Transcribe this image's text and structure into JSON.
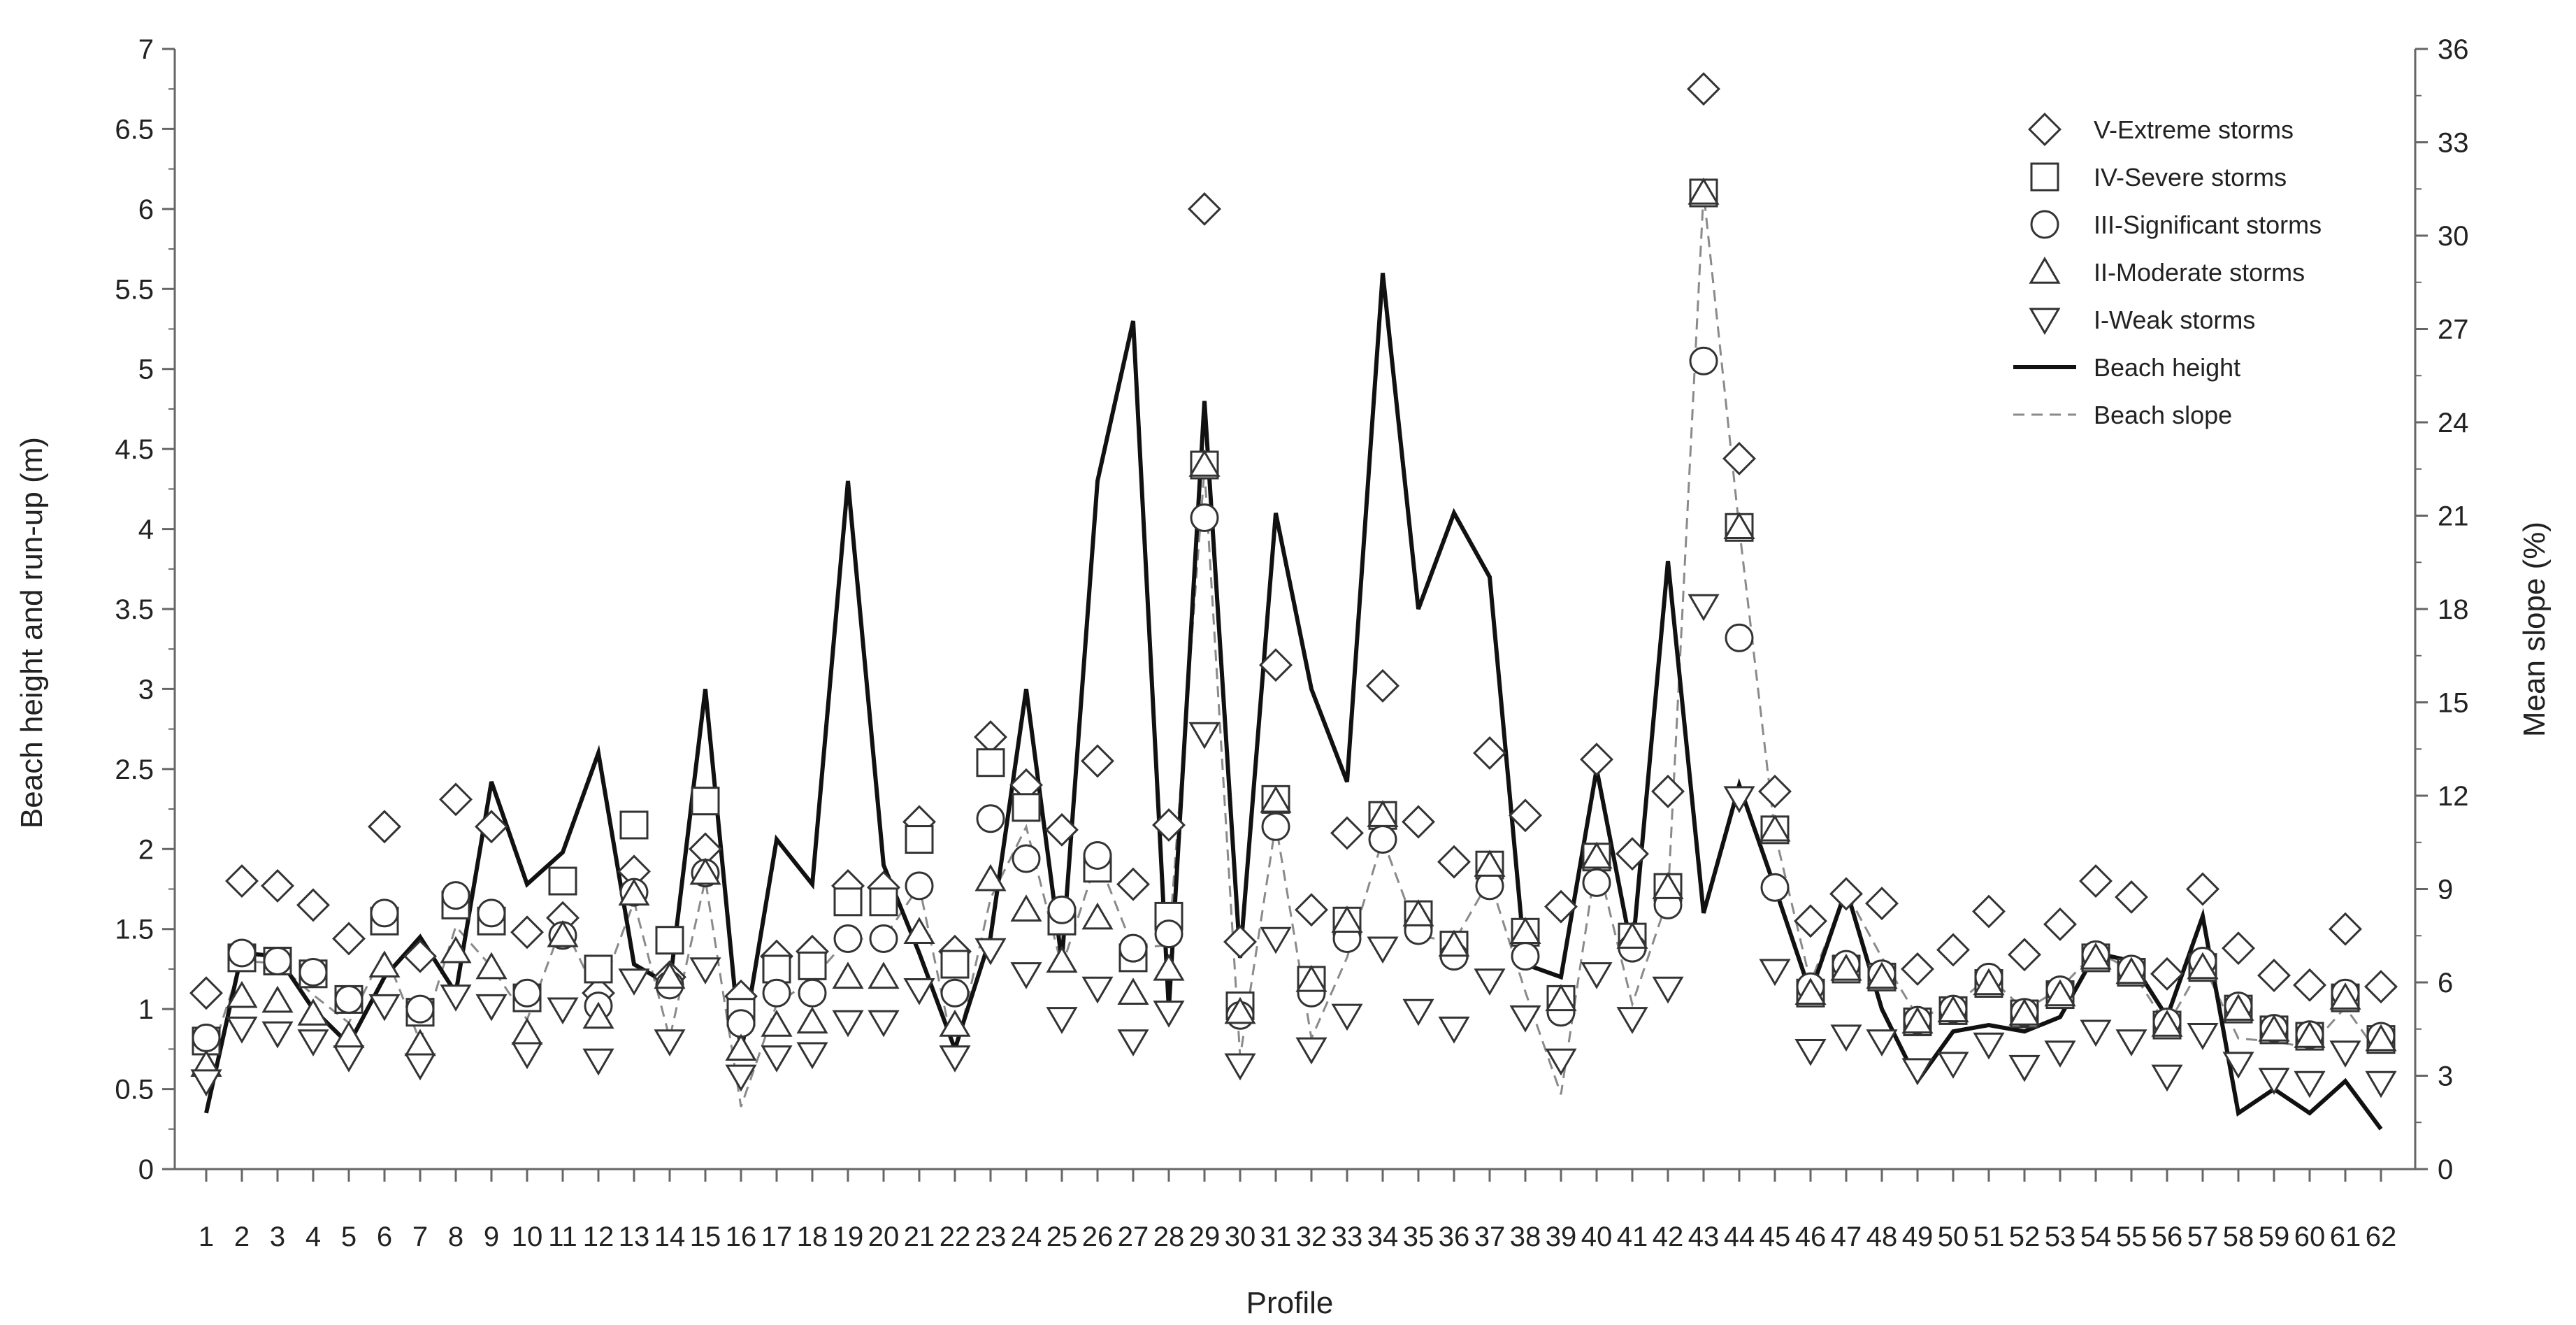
{
  "chart_data": {
    "type": "line",
    "xlabel": "Profile",
    "ylabel_left": "Beach height and run-up (m)",
    "ylabel_right": "Mean slope (%)",
    "ylim_left": [
      0,
      7
    ],
    "ylim_right": [
      0,
      36
    ],
    "yticks_left": [
      "0",
      "0.5",
      "1",
      "1.5",
      "2",
      "2.5",
      "3",
      "3.5",
      "4",
      "4.5",
      "5",
      "5.5",
      "6",
      "6.5",
      "7"
    ],
    "yticks_right": [
      "0",
      "3",
      "6",
      "9",
      "12",
      "15",
      "18",
      "21",
      "24",
      "27",
      "30",
      "33",
      "36"
    ],
    "x": [
      1,
      2,
      3,
      4,
      5,
      6,
      7,
      8,
      9,
      10,
      11,
      12,
      13,
      14,
      15,
      16,
      17,
      18,
      19,
      20,
      21,
      22,
      23,
      24,
      25,
      26,
      27,
      28,
      29,
      30,
      31,
      32,
      33,
      34,
      35,
      36,
      37,
      38,
      39,
      40,
      41,
      42,
      43,
      44,
      45,
      46,
      47,
      48,
      49,
      50,
      51,
      52,
      53,
      54,
      55,
      56,
      57,
      58,
      59,
      60,
      61,
      62
    ],
    "grid": false,
    "legend_position": "top-right",
    "series": [
      {
        "name": "V-Extreme storms",
        "marker": "diamond",
        "axis": "left",
        "values": [
          1.1,
          1.8,
          1.77,
          1.65,
          1.44,
          2.14,
          1.33,
          2.31,
          2.14,
          1.48,
          1.57,
          1.1,
          1.86,
          1.2,
          2.0,
          1.08,
          1.33,
          1.36,
          1.77,
          1.76,
          2.17,
          1.36,
          2.7,
          2.4,
          2.12,
          2.55,
          1.78,
          2.15,
          6.0,
          1.42,
          3.15,
          1.62,
          2.1,
          3.02,
          2.17,
          1.92,
          2.6,
          2.21,
          1.64,
          2.56,
          1.97,
          2.36,
          6.75,
          4.44,
          2.36,
          1.55,
          1.72,
          1.66,
          1.25,
          1.37,
          1.61,
          1.34,
          1.53,
          1.8,
          1.7,
          1.22,
          1.75,
          1.38,
          1.21,
          1.15,
          1.5,
          1.14
        ]
      },
      {
        "name": "IV-Severe storms",
        "marker": "square",
        "axis": "left",
        "values": [
          0.8,
          1.32,
          1.3,
          1.22,
          1.06,
          1.55,
          0.98,
          1.65,
          1.55,
          1.07,
          1.8,
          1.25,
          2.15,
          1.43,
          2.3,
          0.98,
          1.25,
          1.27,
          1.67,
          1.67,
          2.06,
          1.28,
          2.54,
          2.26,
          1.55,
          1.88,
          1.32,
          1.58,
          4.4,
          1.02,
          2.31,
          1.18,
          1.55,
          2.21,
          1.59,
          1.4,
          1.9,
          1.48,
          1.06,
          1.95,
          1.45,
          1.76,
          6.1,
          4.01,
          2.12,
          1.1,
          1.25,
          1.2,
          0.92,
          0.99,
          1.16,
          0.97,
          1.09,
          1.32,
          1.23,
          0.9,
          1.26,
          1.0,
          0.87,
          0.83,
          1.07,
          0.81
        ]
      },
      {
        "name": "III-Significant storms",
        "marker": "circle",
        "axis": "left",
        "values": [
          0.82,
          1.35,
          1.3,
          1.23,
          1.06,
          1.6,
          1.0,
          1.71,
          1.6,
          1.1,
          1.46,
          1.02,
          1.73,
          1.15,
          1.85,
          0.91,
          1.1,
          1.1,
          1.44,
          1.44,
          1.77,
          1.1,
          2.19,
          1.94,
          1.62,
          1.96,
          1.38,
          1.47,
          4.07,
          0.96,
          2.14,
          1.1,
          1.44,
          2.06,
          1.49,
          1.33,
          1.77,
          1.33,
          0.98,
          1.79,
          1.38,
          1.65,
          5.05,
          3.32,
          1.76,
          1.14,
          1.28,
          1.22,
          0.93,
          1.0,
          1.2,
          0.98,
          1.12,
          1.34,
          1.25,
          0.92,
          1.3,
          1.02,
          0.88,
          0.84,
          1.1,
          0.83
        ]
      },
      {
        "name": "II-Moderate storms",
        "marker": "triangle-up",
        "axis": "left",
        "values": [
          0.65,
          1.08,
          1.05,
          0.97,
          0.83,
          1.27,
          0.78,
          1.36,
          1.26,
          0.85,
          1.46,
          0.95,
          1.72,
          1.2,
          1.85,
          0.75,
          0.9,
          0.92,
          1.2,
          1.2,
          1.48,
          0.9,
          1.81,
          1.62,
          1.3,
          1.57,
          1.1,
          1.25,
          4.4,
          0.98,
          2.3,
          1.18,
          1.55,
          2.21,
          1.59,
          1.4,
          1.9,
          1.48,
          1.06,
          1.95,
          1.45,
          1.76,
          6.1,
          4.01,
          2.12,
          1.1,
          1.25,
          1.2,
          0.92,
          0.99,
          1.16,
          0.97,
          1.09,
          1.32,
          1.23,
          0.9,
          1.26,
          1.0,
          0.87,
          0.83,
          1.07,
          0.81
        ]
      },
      {
        "name": "I-Weak storms",
        "marker": "triangle-down",
        "axis": "left",
        "values": [
          0.55,
          0.88,
          0.85,
          0.8,
          0.7,
          1.02,
          0.65,
          1.08,
          1.02,
          0.72,
          1.0,
          0.68,
          1.18,
          0.8,
          1.25,
          0.58,
          0.7,
          0.72,
          0.92,
          0.92,
          1.12,
          0.7,
          1.37,
          1.22,
          0.94,
          1.13,
          0.8,
          0.98,
          2.72,
          0.65,
          1.44,
          0.75,
          0.96,
          1.38,
          0.99,
          0.88,
          1.18,
          0.95,
          0.68,
          1.22,
          0.94,
          1.13,
          3.52,
          2.32,
          1.24,
          0.74,
          0.83,
          0.8,
          0.62,
          0.66,
          0.78,
          0.64,
          0.73,
          0.86,
          0.8,
          0.58,
          0.84,
          0.66,
          0.56,
          0.54,
          0.73,
          0.54
        ]
      },
      {
        "name": "Beach height",
        "marker": "line-solid",
        "axis": "left",
        "values": [
          0.35,
          1.35,
          1.33,
          1.0,
          0.78,
          1.2,
          1.45,
          1.1,
          2.42,
          1.78,
          1.98,
          2.6,
          1.28,
          1.15,
          3.0,
          0.72,
          2.06,
          1.78,
          4.3,
          1.9,
          1.35,
          0.75,
          1.45,
          3.0,
          1.3,
          4.3,
          5.3,
          1.0,
          4.8,
          1.32,
          4.1,
          3.0,
          2.42,
          5.6,
          3.5,
          4.1,
          3.7,
          1.28,
          1.2,
          2.5,
          1.35,
          3.8,
          1.6,
          2.4,
          1.76,
          1.1,
          1.75,
          1.0,
          0.55,
          0.86,
          0.9,
          0.86,
          0.95,
          1.35,
          1.3,
          0.95,
          1.58,
          0.35,
          0.5,
          0.35,
          0.55,
          0.25
        ]
      },
      {
        "name": "Beach slope",
        "marker": "line-dashed",
        "axis": "right",
        "values": [
          3.2,
          6.7,
          6.6,
          5.6,
          4.7,
          7.0,
          4.1,
          7.8,
          6.5,
          4.8,
          7.9,
          5.5,
          8.6,
          4.2,
          9.3,
          2.0,
          5.3,
          6.1,
          7.4,
          7.4,
          9.1,
          3.6,
          8.7,
          11.0,
          6.5,
          10.0,
          7.1,
          7.2,
          22.5,
          3.6,
          11.1,
          4.2,
          6.8,
          10.6,
          7.5,
          7.3,
          9.3,
          5.7,
          2.4,
          10.0,
          5.3,
          8.7,
          31.4,
          20.6,
          10.8,
          6.0,
          8.9,
          6.8,
          4.9,
          5.2,
          6.2,
          5.1,
          5.8,
          7.0,
          6.4,
          4.6,
          6.6,
          4.2,
          4.1,
          3.9,
          5.2,
          3.6
        ]
      }
    ]
  }
}
